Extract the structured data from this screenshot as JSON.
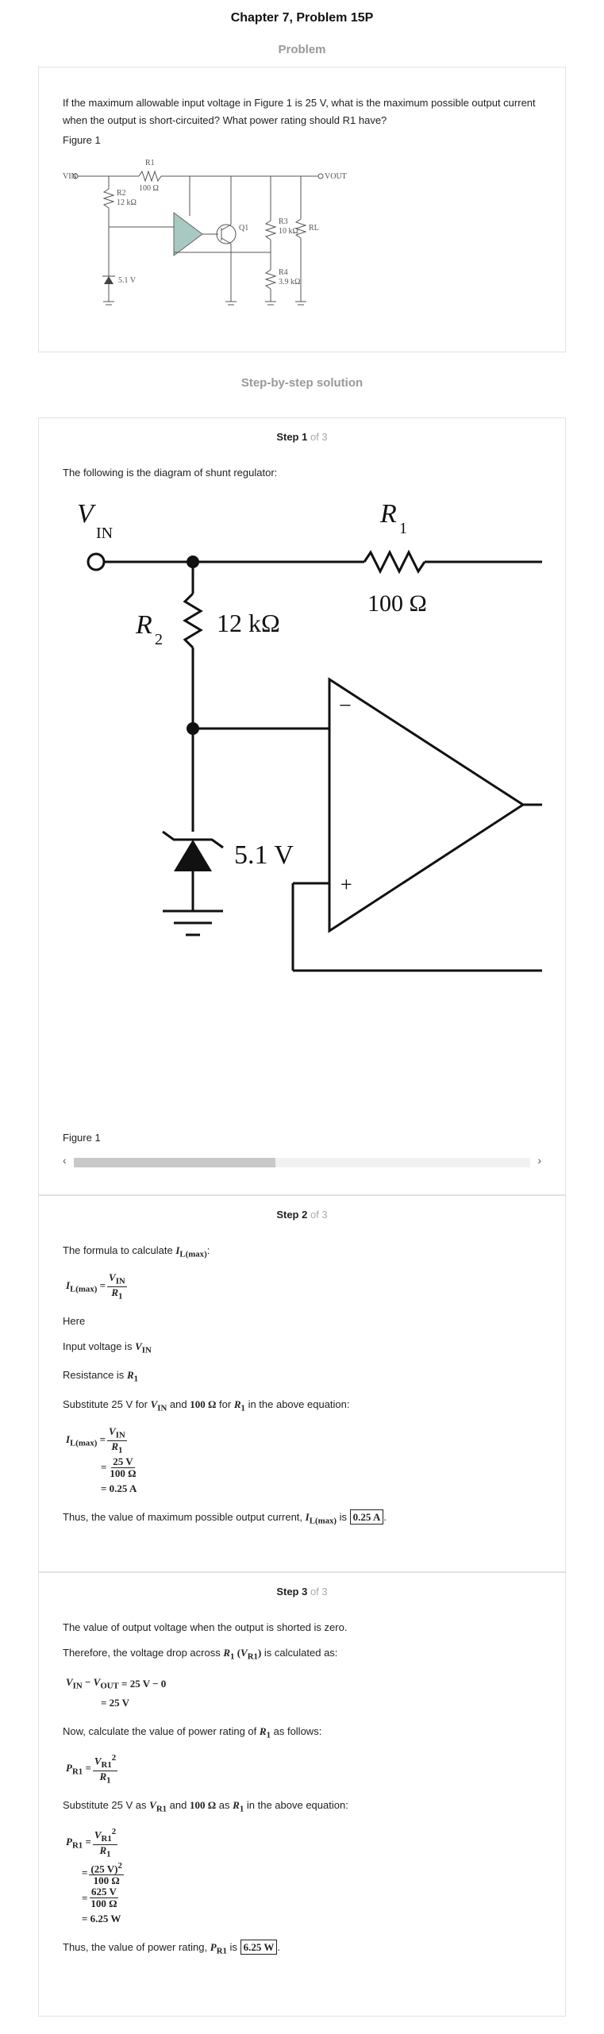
{
  "header": {
    "title": "Chapter 7, Problem 15P"
  },
  "problem": {
    "heading": "Problem",
    "text": "If the maximum allowable input voltage in Figure 1 is 25 V, what is the maximum possible output current when the output is short-circuited? What power rating should R1 have?",
    "figure_label": "Figure 1",
    "circuit_labels": {
      "vin": "VIN",
      "vout": "VOUT",
      "r1": "R1",
      "r1_val": "100 Ω",
      "r2": "R2",
      "r2_val": "12 kΩ",
      "q1": "Q1",
      "r3": "R3",
      "r3_val": "10 kΩ",
      "rl": "RL",
      "r4": "R4",
      "r4_val": "3.9 kΩ",
      "zener": "5.1 V"
    }
  },
  "solution": {
    "heading": "Step-by-step solution"
  },
  "step1": {
    "label": "Step 1",
    "of": "of 3",
    "intro": "The following is the diagram of shunt regulator:",
    "figure_label": "Figure 1",
    "circuit": {
      "vin": "V",
      "vin_sub": "IN",
      "r1": "R",
      "r1_sub": "1",
      "r1_val": "100 Ω",
      "r2": "R",
      "r2_sub": "2",
      "r2_val": "12 kΩ",
      "zener": "5.1 V",
      "minus": "−",
      "plus": "+"
    }
  },
  "step2": {
    "label": "Step 2",
    "of": "of 3",
    "intro": "The formula to calculate",
    "here": "Here",
    "input_voltage": "Input voltage is",
    "resistance": "Resistance is",
    "substitute_a": "Substitute 25 V for",
    "substitute_and": "and",
    "substitute_for": "for",
    "substitute_b": "in the above equation:",
    "val_25v": "25 V",
    "val_100ohm": "100 Ω",
    "result": "= 0.25 A",
    "conclusion_a": "Thus, the value of maximum possible output current,",
    "conclusion_is": "is",
    "answer": "0.25 A"
  },
  "step3": {
    "label": "Step 3",
    "of": "of 3",
    "line1": "The value of output voltage when the output is shorted is zero.",
    "line2_a": "Therefore, the voltage drop across",
    "line2_b": "is calculated as:",
    "eq1_rhs": "= 25 V − 0",
    "eq1_res": "= 25 V",
    "line3_a": "Now, calculate the value of power rating of",
    "line3_b": "as follows:",
    "line4_a": "Substitute 25 V as",
    "line4_and": "and",
    "line4_as": "as",
    "line4_b": "in the above equation:",
    "num_sq": "(25 V)",
    "den": "100 Ω",
    "num_625": "625 V",
    "result": "= 6.25 W",
    "conclusion_a": "Thus, the value of power rating,",
    "conclusion_is": "is",
    "answer": "6.25 W"
  }
}
